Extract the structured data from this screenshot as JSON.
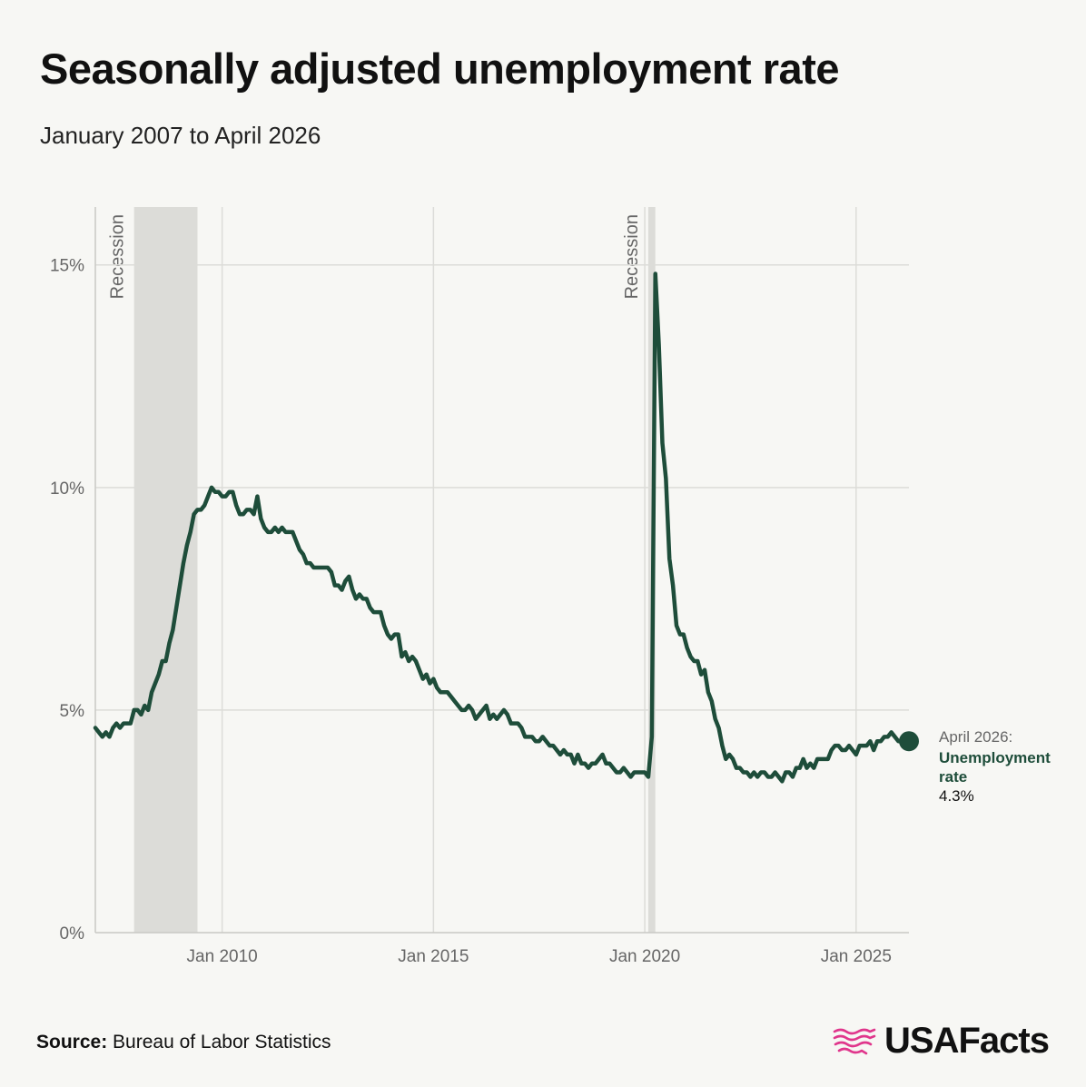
{
  "title": "Seasonally adjusted unemployment rate",
  "subtitle": "January 2007 to April 2026",
  "source_label": "Source:",
  "source_text": "Bureau of Labor Statistics",
  "logo_text": "USAFacts",
  "colors": {
    "line": "#1e4d3a",
    "recession": "#dcdcd8",
    "grid": "#dcdcd8",
    "axis": "#c8c8c4",
    "logo_accent": "#e0368c"
  },
  "chart_data": {
    "type": "line",
    "title": "Seasonally adjusted unemployment rate",
    "subtitle": "January 2007 to April 2026",
    "x_start": "2007-01",
    "x_end": "2026-04",
    "frequency": "monthly",
    "ylim": [
      0,
      16.3
    ],
    "y_ticks": [
      0,
      5,
      10,
      15
    ],
    "y_tick_labels": [
      "0%",
      "5%",
      "10%",
      "15%"
    ],
    "x_ticks": [
      "2010-01",
      "2015-01",
      "2020-01",
      "2025-01"
    ],
    "x_tick_labels": [
      "Jan 2010",
      "Jan 2015",
      "Jan 2020",
      "Jan 2025"
    ],
    "grid": true,
    "recessions": [
      {
        "start": "2007-12",
        "end": "2009-06",
        "label": "Recession"
      },
      {
        "start": "2020-02",
        "end": "2020-04",
        "label": "Recession"
      }
    ],
    "series": [
      {
        "name": "Unemployment rate",
        "values": [
          4.6,
          4.5,
          4.4,
          4.5,
          4.4,
          4.6,
          4.7,
          4.6,
          4.7,
          4.7,
          4.7,
          5.0,
          5.0,
          4.9,
          5.1,
          5.0,
          5.4,
          5.6,
          5.8,
          6.1,
          6.1,
          6.5,
          6.8,
          7.3,
          7.8,
          8.3,
          8.7,
          9.0,
          9.4,
          9.5,
          9.5,
          9.6,
          9.8,
          10.0,
          9.9,
          9.9,
          9.8,
          9.8,
          9.9,
          9.9,
          9.6,
          9.4,
          9.4,
          9.5,
          9.5,
          9.4,
          9.8,
          9.3,
          9.1,
          9.0,
          9.0,
          9.1,
          9.0,
          9.1,
          9.0,
          9.0,
          9.0,
          8.8,
          8.6,
          8.5,
          8.3,
          8.3,
          8.2,
          8.2,
          8.2,
          8.2,
          8.2,
          8.1,
          7.8,
          7.8,
          7.7,
          7.9,
          8.0,
          7.7,
          7.5,
          7.6,
          7.5,
          7.5,
          7.3,
          7.2,
          7.2,
          7.2,
          6.9,
          6.7,
          6.6,
          6.7,
          6.7,
          6.2,
          6.3,
          6.1,
          6.2,
          6.1,
          5.9,
          5.7,
          5.8,
          5.6,
          5.7,
          5.5,
          5.4,
          5.4,
          5.4,
          5.3,
          5.2,
          5.1,
          5.0,
          5.0,
          5.1,
          5.0,
          4.8,
          4.9,
          5.0,
          5.1,
          4.8,
          4.9,
          4.8,
          4.9,
          5.0,
          4.9,
          4.7,
          4.7,
          4.7,
          4.6,
          4.4,
          4.4,
          4.4,
          4.3,
          4.3,
          4.4,
          4.3,
          4.2,
          4.2,
          4.1,
          4.0,
          4.1,
          4.0,
          4.0,
          3.8,
          4.0,
          3.8,
          3.8,
          3.7,
          3.8,
          3.8,
          3.9,
          4.0,
          3.8,
          3.8,
          3.7,
          3.6,
          3.6,
          3.7,
          3.6,
          3.5,
          3.6,
          3.6,
          3.6,
          3.6,
          3.5,
          4.4,
          14.8,
          13.2,
          11.0,
          10.2,
          8.4,
          7.8,
          6.9,
          6.7,
          6.7,
          6.4,
          6.2,
          6.1,
          6.1,
          5.8,
          5.9,
          5.4,
          5.2,
          4.8,
          4.6,
          4.2,
          3.9,
          4.0,
          3.9,
          3.7,
          3.7,
          3.6,
          3.6,
          3.5,
          3.6,
          3.5,
          3.6,
          3.6,
          3.5,
          3.5,
          3.6,
          3.5,
          3.4,
          3.6,
          3.6,
          3.5,
          3.7,
          3.7,
          3.9,
          3.7,
          3.8,
          3.7,
          3.9,
          3.9,
          3.9,
          3.9,
          4.1,
          4.2,
          4.2,
          4.1,
          4.1,
          4.2,
          4.1,
          4.0,
          4.2,
          4.2,
          4.2,
          4.3,
          4.1,
          4.3,
          4.3,
          4.4,
          4.4,
          4.5,
          4.4,
          4.3,
          4.3,
          4.4,
          4.3
        ]
      }
    ],
    "annotation": {
      "date_label": "April 2026:",
      "series_label_line1": "Unemployment",
      "series_label_line2": "rate",
      "value_label": "4.3%"
    }
  }
}
